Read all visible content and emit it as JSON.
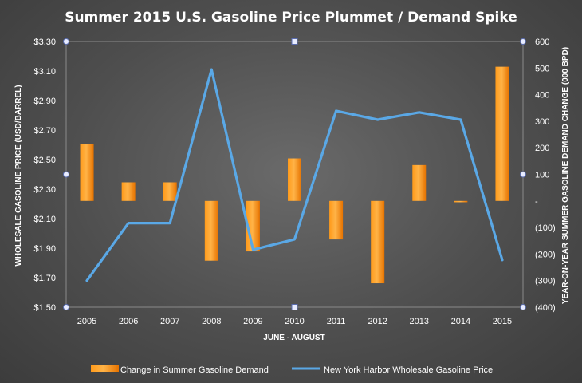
{
  "chart_data": {
    "type": "bar+line",
    "title": "Summer 2015 U.S. Gasoline Price Plummet / Demand Spike",
    "xlabel": "JUNE - AUGUST",
    "ylabel_left": "WHOLESALE GASOLINE PRICE (USD/BARREL)",
    "ylabel_right": "YEAR-ON-YEAR SUMMER GASOLINE DEMAND CHANGE (000 BPD)",
    "categories": [
      "2005",
      "2006",
      "2007",
      "2008",
      "2009",
      "2010",
      "2011",
      "2012",
      "2013",
      "2014",
      "2015"
    ],
    "left_axis": {
      "min": 1.5,
      "max": 3.3,
      "ticks": [
        "$1.50",
        "$1.70",
        "$1.90",
        "$2.10",
        "$2.30",
        "$2.50",
        "$2.70",
        "$2.90",
        "$3.10",
        "$3.30"
      ]
    },
    "right_axis": {
      "min": -400,
      "max": 600,
      "ticks": [
        "(400)",
        "(300)",
        "(200)",
        "(100)",
        "-",
        "100",
        "200",
        "300",
        "400",
        "500",
        "600"
      ]
    },
    "series": [
      {
        "name": "Change in Summer Gasoline Demand",
        "type": "bar",
        "axis": "right",
        "color": "#ff8c00",
        "values": [
          215,
          70,
          70,
          -225,
          -190,
          160,
          -145,
          -310,
          135,
          -5,
          505
        ]
      },
      {
        "name": "New York Harbor Wholesale Gasoline Price",
        "type": "line",
        "axis": "left",
        "color": "#5aa8e6",
        "values": [
          1.68,
          2.07,
          2.07,
          3.11,
          1.89,
          1.96,
          2.83,
          2.77,
          2.82,
          2.77,
          1.82
        ]
      }
    ],
    "legend_position": "bottom",
    "grid": false
  }
}
